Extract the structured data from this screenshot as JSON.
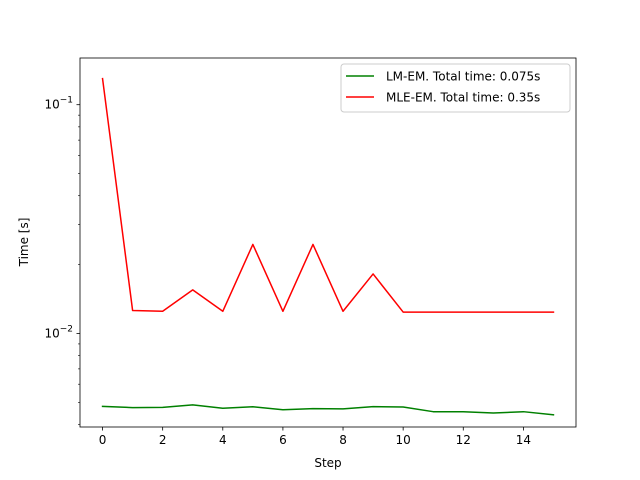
{
  "chart_data": {
    "type": "line",
    "xlabel": "Step",
    "ylabel": "Time [s]",
    "xlim": [
      -0.75,
      15.75
    ],
    "ylim": [
      0.0039,
      0.16
    ],
    "yscale": "log",
    "grid": false,
    "legend_position": "top-right",
    "x_ticks": [
      0,
      2,
      4,
      6,
      8,
      10,
      12,
      14
    ],
    "x_tick_labels": [
      "0",
      "2",
      "4",
      "6",
      "8",
      "10",
      "12",
      "14"
    ],
    "y_major_ticks": [
      0.01,
      0.1
    ],
    "y_tick_labels": [
      {
        "base": "10",
        "exp": "−2"
      },
      {
        "base": "10",
        "exp": "−1"
      }
    ],
    "y_minor_ticks": [
      0.004,
      0.005,
      0.006,
      0.007,
      0.008,
      0.009,
      0.02,
      0.03,
      0.04,
      0.05,
      0.06,
      0.07,
      0.08,
      0.09
    ],
    "x": [
      0,
      1,
      2,
      3,
      4,
      5,
      6,
      7,
      8,
      9,
      10,
      11,
      12,
      13,
      14,
      15
    ],
    "series": [
      {
        "name": "LM-EM. Total time: 0.075s",
        "color": "#008000",
        "values": [
          0.0048,
          0.00474,
          0.00475,
          0.00487,
          0.00471,
          0.00478,
          0.00464,
          0.00469,
          0.00468,
          0.00479,
          0.00477,
          0.00455,
          0.00455,
          0.00449,
          0.00455,
          0.00441
        ]
      },
      {
        "name": "MLE-EM. Total time: 0.35s",
        "color": "#ff0000",
        "values": [
          0.13,
          0.0126,
          0.0125,
          0.0155,
          0.0125,
          0.0245,
          0.0125,
          0.0245,
          0.0125,
          0.0182,
          0.0124,
          0.0124,
          0.0124,
          0.0124,
          0.0124,
          0.0124
        ]
      }
    ]
  }
}
